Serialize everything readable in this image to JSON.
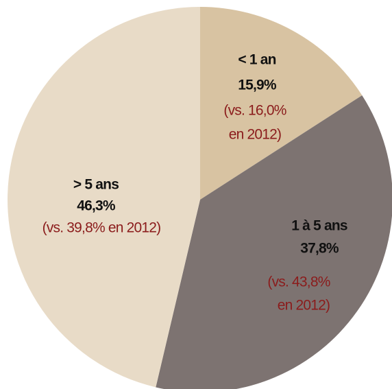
{
  "chart_data": {
    "type": "pie",
    "categories": [
      "< 1 an",
      "1 à 5 ans",
      "> 5 ans"
    ],
    "values": [
      15.9,
      37.8,
      46.3
    ],
    "value_labels": [
      "15,9%",
      "37,8%",
      "46,3%"
    ],
    "colors": [
      "#d8c3a2",
      "#7d7371",
      "#e8dbc7"
    ],
    "notes": [
      [
        "(vs. 16,0%",
        "en 2012)"
      ],
      [
        "(vs. 43,8%",
        "en 2012)"
      ],
      [
        "(vs. 39,8% en 2012)"
      ]
    ]
  }
}
